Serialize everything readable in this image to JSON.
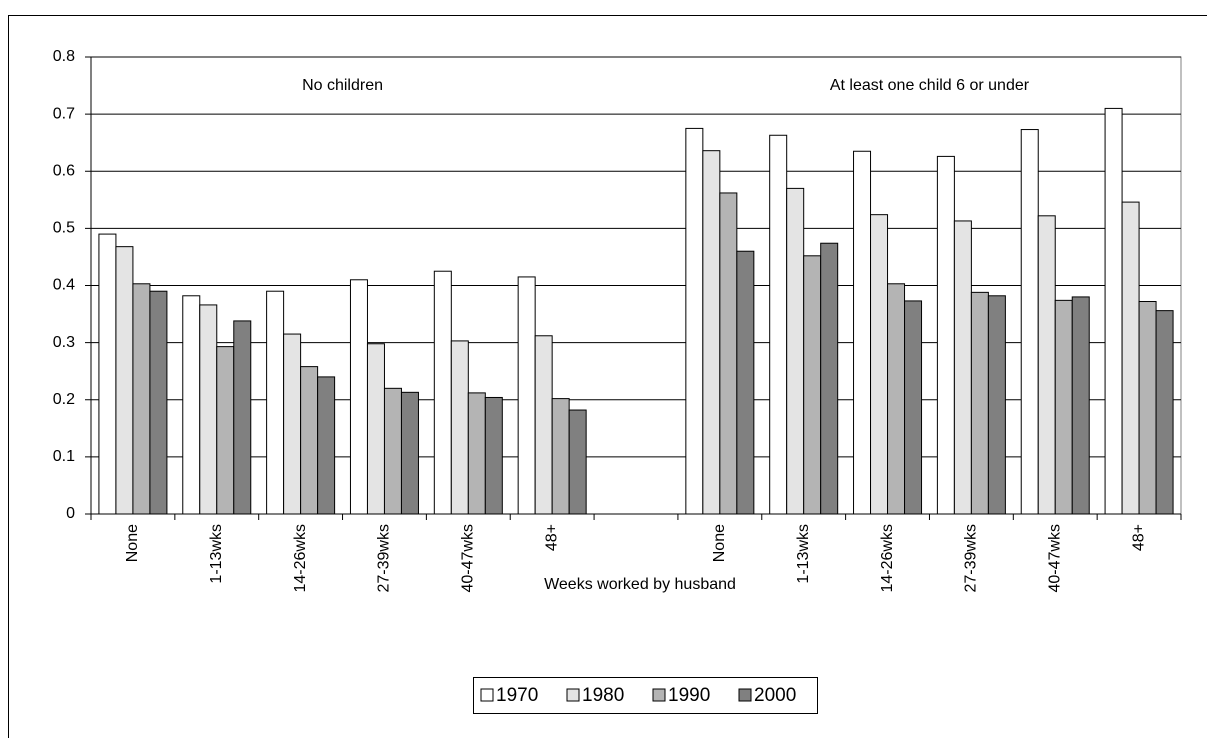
{
  "chart_data": {
    "type": "bar",
    "x_label": "Weeks worked by husband",
    "annotations": [
      "No children",
      "At least one child 6 or under"
    ],
    "categories": [
      "None",
      "1-13wks",
      "14-26wks",
      "27-39wks",
      "40-47wks",
      "48+",
      null,
      "None",
      "1-13wks",
      "14-26wks",
      "27-39wks",
      "40-47wks",
      "48+"
    ],
    "series": [
      {
        "name": "1970",
        "color": "#ffffff",
        "values": [
          0.49,
          0.382,
          0.39,
          0.41,
          0.425,
          0.415,
          null,
          0.675,
          0.663,
          0.635,
          0.626,
          0.673,
          0.71
        ]
      },
      {
        "name": "1980",
        "color": "#e4e4e4",
        "values": [
          0.468,
          0.366,
          0.315,
          0.298,
          0.303,
          0.312,
          null,
          0.636,
          0.57,
          0.524,
          0.513,
          0.522,
          0.546
        ]
      },
      {
        "name": "1990",
        "color": "#b4b4b4",
        "values": [
          0.403,
          0.293,
          0.258,
          0.22,
          0.212,
          0.202,
          null,
          0.562,
          0.452,
          0.403,
          0.388,
          0.374,
          0.372
        ]
      },
      {
        "name": "2000",
        "color": "#808080",
        "values": [
          0.39,
          0.338,
          0.24,
          0.213,
          0.204,
          0.182,
          null,
          0.46,
          0.474,
          0.373,
          0.382,
          0.38,
          0.356
        ]
      }
    ],
    "ylim": [
      0,
      0.8
    ],
    "yticks": [
      0,
      0.1,
      0.2,
      0.3,
      0.4,
      0.5,
      0.6,
      0.7,
      0.8
    ],
    "grid": true,
    "legend": "bottom"
  }
}
